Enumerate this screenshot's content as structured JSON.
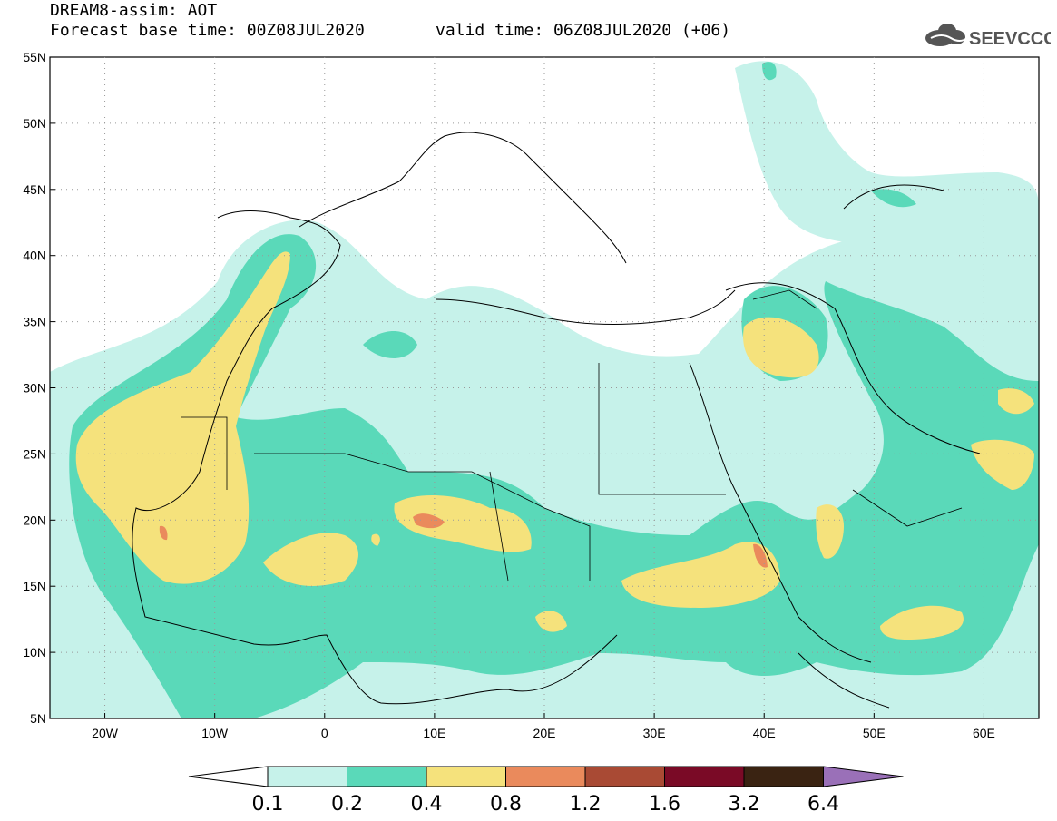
{
  "header": {
    "title_line1": "DREAM8-assim: AOT",
    "title_line2": "Forecast base time: 00Z08JUL2020",
    "valid_time": "valid time: 06Z08JUL2020 (+06)",
    "logo_text": "SEEVCCC"
  },
  "map": {
    "lon_range": [
      -25,
      65
    ],
    "lat_range": [
      5,
      55
    ],
    "lon_ticks": [
      {
        "value": -20,
        "label": "20W"
      },
      {
        "value": -10,
        "label": "10W"
      },
      {
        "value": 0,
        "label": "0"
      },
      {
        "value": 10,
        "label": "10E"
      },
      {
        "value": 20,
        "label": "20E"
      },
      {
        "value": 30,
        "label": "30E"
      },
      {
        "value": 40,
        "label": "40E"
      },
      {
        "value": 50,
        "label": "50E"
      },
      {
        "value": 60,
        "label": "60E"
      }
    ],
    "lat_ticks": [
      {
        "value": 55,
        "label": "55N"
      },
      {
        "value": 50,
        "label": "50N"
      },
      {
        "value": 45,
        "label": "45N"
      },
      {
        "value": 40,
        "label": "40N"
      },
      {
        "value": 35,
        "label": "35N"
      },
      {
        "value": 30,
        "label": "30N"
      },
      {
        "value": 25,
        "label": "25N"
      },
      {
        "value": 20,
        "label": "20N"
      },
      {
        "value": 15,
        "label": "15N"
      },
      {
        "value": 10,
        "label": "10N"
      },
      {
        "value": 5,
        "label": "5N"
      }
    ],
    "gridlines": true
  },
  "legend": {
    "levels": [
      "0.1",
      "0.2",
      "0.4",
      "0.8",
      "1.2",
      "1.6",
      "3.2",
      "6.4"
    ],
    "colors": [
      "#ffffff",
      "#c6f2ea",
      "#5ad9b9",
      "#f5e27c",
      "#ea8a5c",
      "#a94a34",
      "#7a0a26",
      "#3a2312",
      "#9a70b8"
    ]
  },
  "colors": {
    "c1": "#c6f2ea",
    "c2": "#5ad9b9",
    "c3": "#f5e27c",
    "c4": "#ea8a5c",
    "c5": "#c25a43"
  }
}
